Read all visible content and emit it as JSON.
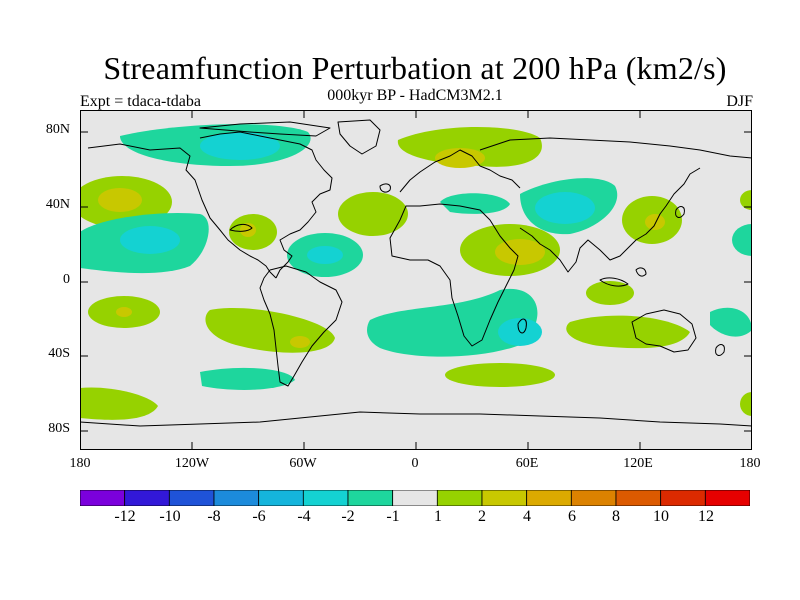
{
  "title": "Streamfunction Perturbation at 200 hPa (km2/s)",
  "subtitle": "000kyr BP - HadCM3M2.1",
  "experiment": "Expt = tdaca-tdaba",
  "season": "DJF",
  "y_axis": {
    "ticks": [
      "80N",
      "40N",
      "0",
      "40S",
      "80S"
    ]
  },
  "x_axis": {
    "ticks": [
      "180",
      "120W",
      "60W",
      "0",
      "60E",
      "120E",
      "180"
    ]
  },
  "colorbar": {
    "colors": [
      "#7b00dc",
      "#3218d8",
      "#1f53d8",
      "#1c8bdb",
      "#15b5dc",
      "#14d2d2",
      "#1ed69d",
      "#e6e6e6",
      "#96d200",
      "#c8c800",
      "#dcaa00",
      "#dc8200",
      "#dc5a00",
      "#dc2a00",
      "#e60000"
    ],
    "labels": [
      "-12",
      "-10",
      "-8",
      "-6",
      "-4",
      "-2",
      "-1",
      "1",
      "2",
      "4",
      "6",
      "8",
      "10",
      "12"
    ]
  },
  "colors": {
    "background": "#e6e6e6",
    "light_green": "#1ed69d",
    "cyan": "#14d2d2",
    "yellow_green": "#96d200",
    "olive": "#c8c800",
    "coast": "#000000"
  }
}
